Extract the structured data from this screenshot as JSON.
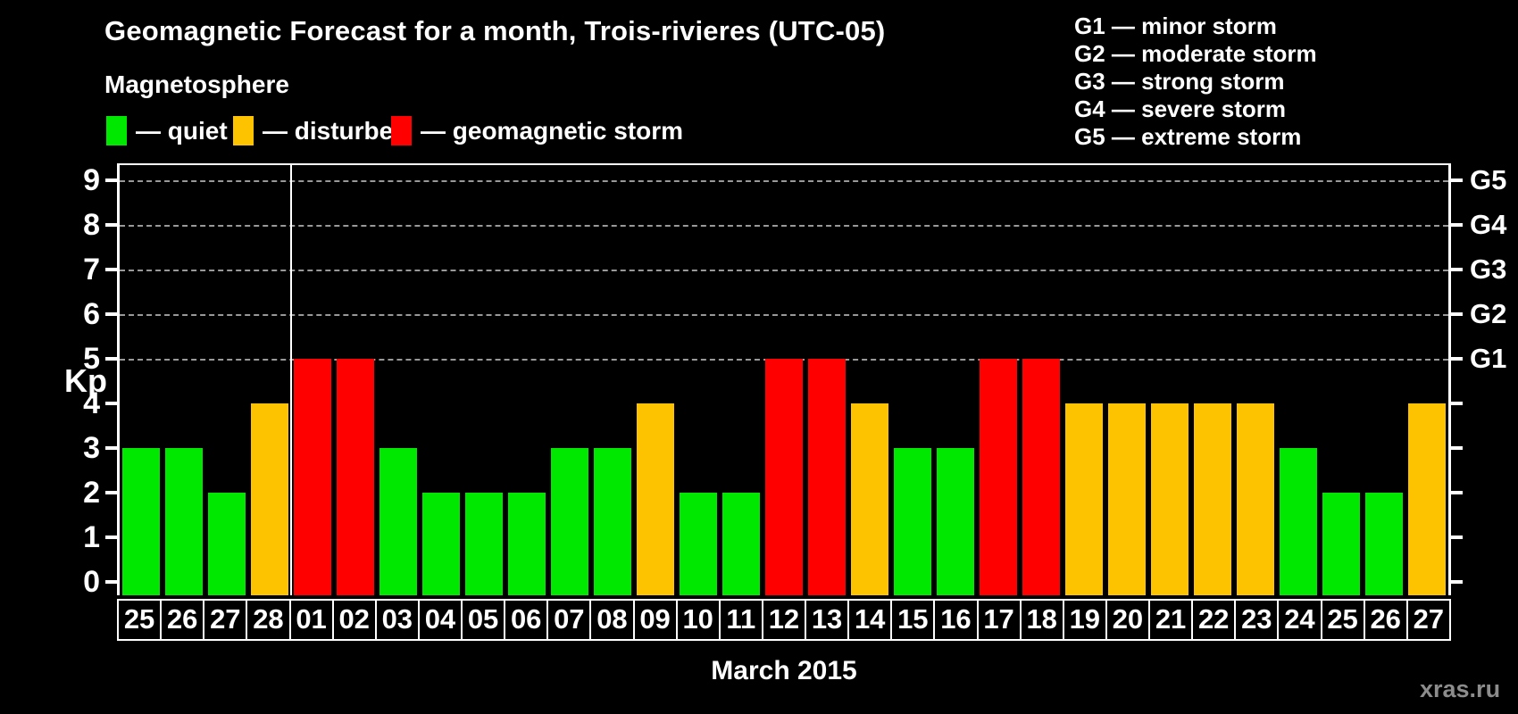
{
  "legend": {
    "heading": "Magnetosphere",
    "items": [
      {
        "status": "quiet",
        "label": "— quiet"
      },
      {
        "status": "disturbed",
        "label": "— disturbed"
      },
      {
        "status": "storm",
        "label": "— geomagnetic storm"
      }
    ]
  },
  "g_scale_legend": [
    "G1 — minor storm",
    "G2 — moderate storm",
    "G3 — strong storm",
    "G4 — severe storm",
    "G5 — extreme storm"
  ],
  "footer": {
    "watermark": "xras.ru"
  },
  "chart_data": {
    "type": "bar",
    "title": "Geomagnetic Forecast for a month, Trois-rivieres (UTC-05)",
    "xlabel": "March 2015",
    "ylabel": "Kp",
    "ylim": [
      0,
      9.4
    ],
    "y_ticks": [
      0,
      1,
      2,
      3,
      4,
      5,
      6,
      7,
      8,
      9
    ],
    "gridline_values": [
      5,
      6,
      7,
      8,
      9
    ],
    "grid_on": true,
    "legend_position": "top",
    "right_axis": [
      {
        "value": 5,
        "label": "G1"
      },
      {
        "value": 6,
        "label": "G2"
      },
      {
        "value": 7,
        "label": "G3"
      },
      {
        "value": 8,
        "label": "G4"
      },
      {
        "value": 9,
        "label": "G5"
      }
    ],
    "categories": [
      "25",
      "26",
      "27",
      "28",
      "01",
      "02",
      "03",
      "04",
      "05",
      "06",
      "07",
      "08",
      "09",
      "10",
      "11",
      "12",
      "13",
      "14",
      "15",
      "16",
      "17",
      "18",
      "19",
      "20",
      "21",
      "22",
      "23",
      "24",
      "25",
      "26",
      "27"
    ],
    "values": [
      3,
      3,
      2,
      4,
      5,
      5,
      3,
      2,
      2,
      2,
      3,
      3,
      4,
      2,
      2,
      5,
      5,
      4,
      3,
      3,
      5,
      5,
      4,
      4,
      4,
      4,
      4,
      3,
      2,
      2,
      4
    ],
    "statuses": [
      "quiet",
      "quiet",
      "quiet",
      "disturbed",
      "storm",
      "storm",
      "quiet",
      "quiet",
      "quiet",
      "quiet",
      "quiet",
      "quiet",
      "disturbed",
      "quiet",
      "quiet",
      "storm",
      "storm",
      "disturbed",
      "quiet",
      "quiet",
      "storm",
      "storm",
      "disturbed",
      "disturbed",
      "disturbed",
      "disturbed",
      "disturbed",
      "quiet",
      "quiet",
      "quiet",
      "disturbed"
    ],
    "month_separator_after_index": 3,
    "colors": {
      "quiet": "#00e800",
      "disturbed": "#fdc300",
      "storm": "#fe0000"
    },
    "grid_color": "#999999"
  }
}
